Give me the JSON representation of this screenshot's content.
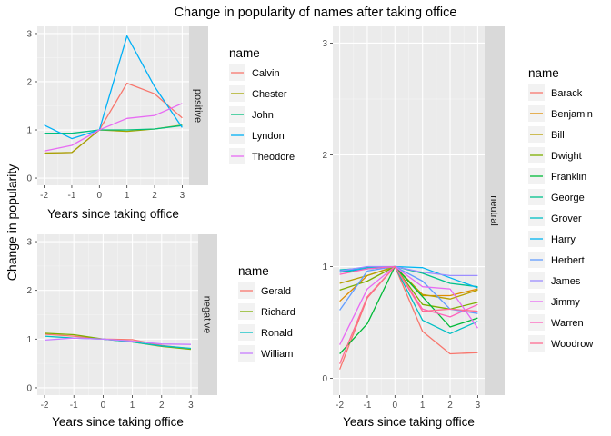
{
  "title": "Change in popularity of names after taking office",
  "shared_ylabel": "Change in popularity",
  "colors": {
    "panel_bg": "#ebebeb",
    "grid_major": "#ffffff",
    "strip_bg": "#d9d9d9",
    "axis_text": "#4d4d4d"
  },
  "chart_data": [
    {
      "type": "line",
      "facet": "positive",
      "xlabel": "Years since taking office",
      "ylabel": "Change in popularity",
      "xlim": [
        -2,
        3
      ],
      "ylim": [
        0,
        3
      ],
      "x_ticks": [
        "-2",
        "-1",
        "0",
        "1",
        "2",
        "3"
      ],
      "y_ticks": [
        "0",
        "1",
        "2",
        "3"
      ],
      "legend_title": "name",
      "legend_position": "right",
      "x": [
        -2,
        -1,
        0,
        1,
        2,
        3
      ],
      "series": [
        {
          "name": "Calvin",
          "color": "#F8766D",
          "values": [
            0.52,
            0.53,
            1.0,
            1.97,
            1.75,
            1.25
          ]
        },
        {
          "name": "Chester",
          "color": "#A3A500",
          "values": [
            0.52,
            0.53,
            1.0,
            0.97,
            1.02,
            1.1
          ]
        },
        {
          "name": "John",
          "color": "#00BF7D",
          "values": [
            0.93,
            0.93,
            1.0,
            1.0,
            1.02,
            1.09
          ]
        },
        {
          "name": "Lyndon",
          "color": "#00B0F6",
          "values": [
            1.1,
            0.82,
            1.0,
            2.95,
            1.9,
            1.05
          ]
        },
        {
          "name": "Theodore",
          "color": "#E76BF3",
          "values": [
            0.56,
            0.68,
            1.0,
            1.24,
            1.3,
            1.55
          ]
        }
      ]
    },
    {
      "type": "line",
      "facet": "negative",
      "xlabel": "Years since taking office",
      "ylabel": "Change in popularity",
      "xlim": [
        -2,
        3
      ],
      "ylim": [
        0,
        3
      ],
      "x_ticks": [
        "-2",
        "-1",
        "0",
        "1",
        "2",
        "3"
      ],
      "y_ticks": [
        "0",
        "1",
        "2",
        "3"
      ],
      "legend_title": "name",
      "legend_position": "right",
      "x": [
        -2,
        -1,
        0,
        1,
        2,
        3
      ],
      "series": [
        {
          "name": "Gerald",
          "color": "#F8766D",
          "values": [
            1.1,
            1.06,
            1.0,
            0.99,
            0.87,
            0.8
          ]
        },
        {
          "name": "Richard",
          "color": "#7CAE00",
          "values": [
            1.12,
            1.09,
            1.0,
            0.94,
            0.85,
            0.79
          ]
        },
        {
          "name": "Ronald",
          "color": "#00BFC4",
          "values": [
            1.06,
            1.02,
            1.0,
            0.94,
            0.86,
            0.81
          ]
        },
        {
          "name": "William",
          "color": "#C77CFF",
          "values": [
            0.98,
            1.02,
            1.0,
            0.96,
            0.9,
            0.89
          ]
        }
      ]
    },
    {
      "type": "line",
      "facet": "neutral",
      "xlabel": "Years since taking office",
      "ylabel": "",
      "xlim": [
        -2,
        3
      ],
      "ylim": [
        0,
        3
      ],
      "x_ticks": [
        "-2",
        "-1",
        "0",
        "1",
        "2",
        "3"
      ],
      "y_ticks": [
        "0",
        "1",
        "2",
        "3"
      ],
      "legend_title": "name",
      "legend_position": "right",
      "x": [
        -2,
        -1,
        0,
        1,
        2,
        3
      ],
      "series": [
        {
          "name": "Barack",
          "color": "#F8766D",
          "values": [
            0.08,
            0.72,
            1.0,
            0.42,
            0.22,
            0.23
          ]
        },
        {
          "name": "Benjamin",
          "color": "#DE8C00",
          "values": [
            0.69,
            0.92,
            1.0,
            0.74,
            0.74,
            0.8
          ]
        },
        {
          "name": "Bill",
          "color": "#B79F00",
          "values": [
            0.85,
            0.92,
            1.0,
            0.75,
            0.71,
            0.79
          ]
        },
        {
          "name": "Dwight",
          "color": "#7CAE00",
          "values": [
            0.79,
            0.87,
            1.0,
            0.66,
            0.62,
            0.68
          ]
        },
        {
          "name": "Franklin",
          "color": "#00BA38",
          "values": [
            0.22,
            0.49,
            1.0,
            0.73,
            0.46,
            0.54
          ]
        },
        {
          "name": "George",
          "color": "#00C08B",
          "values": [
            0.95,
            0.98,
            1.0,
            0.94,
            0.85,
            0.82
          ]
        },
        {
          "name": "Grover",
          "color": "#00BFC4",
          "values": [
            0.97,
            0.99,
            1.0,
            0.52,
            0.4,
            0.51
          ]
        },
        {
          "name": "Harry",
          "color": "#00B4F0",
          "values": [
            0.96,
            0.98,
            1.0,
            0.99,
            0.9,
            0.81
          ]
        },
        {
          "name": "Herbert",
          "color": "#619CFF",
          "values": [
            0.61,
            0.96,
            1.0,
            0.87,
            0.62,
            0.58
          ]
        },
        {
          "name": "James",
          "color": "#9C8DFF",
          "values": [
            0.96,
            1.0,
            1.0,
            0.95,
            0.92,
            0.92
          ]
        },
        {
          "name": "Jimmy",
          "color": "#E76BF3",
          "values": [
            0.3,
            0.8,
            1.0,
            0.82,
            0.8,
            0.45
          ]
        },
        {
          "name": "Warren",
          "color": "#FF62BC",
          "values": [
            0.93,
            0.98,
            1.0,
            0.62,
            0.55,
            0.66
          ]
        },
        {
          "name": "Woodrow",
          "color": "#FF6C91",
          "values": [
            0.13,
            0.73,
            1.0,
            0.6,
            0.62,
            0.6
          ]
        }
      ]
    }
  ]
}
